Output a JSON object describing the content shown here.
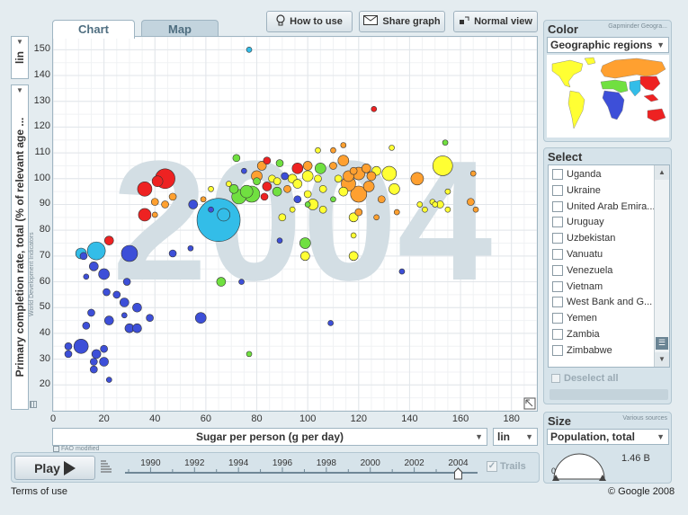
{
  "tabs": [
    {
      "label": "Chart"
    },
    {
      "label": "Map"
    }
  ],
  "toolbar": {
    "how_to_use": "How to use",
    "share_graph": "Share graph",
    "normal_view": "Normal view"
  },
  "chart": {
    "year_watermark": "2004",
    "x_axis_title": "Sugar per person (g per day)",
    "y_axis_title": "Primary completion rate, total (% of relevant age ...",
    "x_scale": "lin",
    "y_scale": "lin",
    "y_source": "World Development Indicators",
    "x_source": "FAO modified"
  },
  "chart_data": {
    "type": "scatter",
    "xlabel": "Sugar per person (g per day)",
    "ylabel": "Primary completion rate, total (% of relevant age ...",
    "xlim": [
      0,
      190
    ],
    "ylim": [
      10,
      155
    ],
    "x_ticks": [
      0,
      20,
      40,
      60,
      80,
      100,
      120,
      140,
      160,
      180
    ],
    "y_ticks": [
      20,
      30,
      40,
      50,
      60,
      70,
      80,
      90,
      100,
      110,
      120,
      130,
      140,
      150
    ],
    "grid": true,
    "colors": {
      "blue": "#3d4fd8",
      "sky": "#33bde8",
      "green": "#70e040",
      "yellow": "#ffff33",
      "orange": "#ffa030",
      "red": "#ee2222"
    },
    "points": [
      [
        77,
        150,
        "sky",
        3
      ],
      [
        126,
        127,
        "red",
        3
      ],
      [
        154,
        114,
        "green",
        3
      ],
      [
        133,
        112,
        "yellow",
        3
      ],
      [
        104,
        111,
        "yellow",
        3
      ],
      [
        110,
        111,
        "orange",
        3
      ],
      [
        114,
        113,
        "orange",
        3
      ],
      [
        72,
        108,
        "green",
        4
      ],
      [
        82,
        105,
        "orange",
        5
      ],
      [
        84,
        107,
        "red",
        4
      ],
      [
        89,
        106,
        "green",
        4
      ],
      [
        96,
        104,
        "red",
        6
      ],
      [
        100,
        105,
        "orange",
        5
      ],
      [
        105,
        104,
        "green",
        6
      ],
      [
        110,
        105,
        "orange",
        4
      ],
      [
        114,
        107,
        "orange",
        6
      ],
      [
        118,
        103,
        "orange",
        4
      ],
      [
        123,
        104,
        "orange",
        5
      ],
      [
        127,
        103,
        "yellow",
        5
      ],
      [
        132,
        102,
        "yellow",
        8
      ],
      [
        153,
        105,
        "yellow",
        11
      ],
      [
        165,
        102,
        "orange",
        3
      ],
      [
        75,
        103,
        "blue",
        3
      ],
      [
        91,
        101,
        "blue",
        4
      ],
      [
        94,
        100,
        "yellow",
        5
      ],
      [
        100,
        101,
        "yellow",
        6
      ],
      [
        104,
        100,
        "yellow",
        4
      ],
      [
        112,
        100,
        "yellow",
        4
      ],
      [
        116,
        101,
        "orange",
        6
      ],
      [
        120,
        102,
        "orange",
        7
      ],
      [
        125,
        101,
        "orange",
        5
      ],
      [
        143,
        100,
        "orange",
        7
      ],
      [
        69,
        98,
        "yellow",
        3
      ],
      [
        80,
        101,
        "orange",
        6
      ],
      [
        86,
        100,
        "yellow",
        4
      ],
      [
        44,
        100,
        "red",
        11
      ],
      [
        36,
        96,
        "red",
        8
      ],
      [
        41,
        99,
        "red",
        6
      ],
      [
        47,
        93,
        "orange",
        4
      ],
      [
        40,
        91,
        "orange",
        4
      ],
      [
        44,
        90,
        "orange",
        4
      ],
      [
        71,
        96,
        "green",
        5
      ],
      [
        76,
        95,
        "green",
        7
      ],
      [
        80,
        99,
        "green",
        4
      ],
      [
        84,
        97,
        "red",
        5
      ],
      [
        88,
        99,
        "yellow",
        4
      ],
      [
        92,
        96,
        "orange",
        4
      ],
      [
        96,
        98,
        "yellow",
        5
      ],
      [
        100,
        94,
        "yellow",
        4
      ],
      [
        106,
        96,
        "yellow",
        4
      ],
      [
        110,
        92,
        "green",
        3
      ],
      [
        114,
        95,
        "yellow",
        5
      ],
      [
        116,
        98,
        "orange",
        8
      ],
      [
        120,
        94,
        "orange",
        9
      ],
      [
        124,
        97,
        "orange",
        6
      ],
      [
        129,
        92,
        "orange",
        4
      ],
      [
        134,
        96,
        "yellow",
        6
      ],
      [
        144,
        90,
        "yellow",
        3
      ],
      [
        146,
        88,
        "yellow",
        3
      ],
      [
        149,
        91,
        "yellow",
        3
      ],
      [
        155,
        88,
        "yellow",
        3
      ],
      [
        155,
        95,
        "yellow",
        3
      ],
      [
        164,
        91,
        "orange",
        4
      ],
      [
        166,
        88,
        "orange",
        3
      ],
      [
        59,
        92,
        "orange",
        3
      ],
      [
        62,
        96,
        "yellow",
        3
      ],
      [
        55,
        90,
        "blue",
        5
      ],
      [
        62,
        88,
        "blue",
        3
      ],
      [
        67,
        86,
        "sky",
        7
      ],
      [
        65,
        84,
        "sky",
        24
      ],
      [
        73,
        93,
        "green",
        8
      ],
      [
        78,
        94,
        "green",
        9
      ],
      [
        83,
        93,
        "red",
        4
      ],
      [
        88,
        95,
        "green",
        5
      ],
      [
        96,
        92,
        "blue",
        4
      ],
      [
        102,
        90,
        "yellow",
        6
      ],
      [
        106,
        88,
        "yellow",
        4
      ],
      [
        90,
        85,
        "yellow",
        4
      ],
      [
        118,
        85,
        "yellow",
        5
      ],
      [
        120,
        87,
        "orange",
        4
      ],
      [
        127,
        85,
        "orange",
        3
      ],
      [
        135,
        87,
        "orange",
        3
      ],
      [
        36,
        86,
        "red",
        7
      ],
      [
        40,
        86,
        "orange",
        3
      ],
      [
        150,
        90,
        "yellow",
        3
      ],
      [
        100,
        90,
        "green",
        3
      ],
      [
        94,
        88,
        "yellow",
        3
      ],
      [
        118,
        78,
        "yellow",
        3
      ],
      [
        152,
        90,
        "yellow",
        4
      ],
      [
        17,
        72,
        "sky",
        10
      ],
      [
        11,
        71,
        "sky",
        6
      ],
      [
        12,
        70,
        "blue",
        4
      ],
      [
        22,
        76,
        "red",
        5
      ],
      [
        30,
        71,
        "blue",
        9
      ],
      [
        47,
        71,
        "blue",
        4
      ],
      [
        54,
        73,
        "blue",
        3
      ],
      [
        89,
        76,
        "blue",
        3
      ],
      [
        99,
        75,
        "green",
        6
      ],
      [
        99,
        70,
        "yellow",
        5
      ],
      [
        118,
        70,
        "yellow",
        5
      ],
      [
        137,
        64,
        "blue",
        3
      ],
      [
        16,
        66,
        "blue",
        5
      ],
      [
        20,
        63,
        "blue",
        6
      ],
      [
        13,
        62,
        "blue",
        3
      ],
      [
        29,
        60,
        "blue",
        4
      ],
      [
        21,
        56,
        "blue",
        4
      ],
      [
        25,
        55,
        "blue",
        4
      ],
      [
        28,
        52,
        "blue",
        5
      ],
      [
        66,
        60,
        "green",
        5
      ],
      [
        74,
        60,
        "blue",
        3
      ],
      [
        15,
        48,
        "blue",
        4
      ],
      [
        33,
        50,
        "blue",
        5
      ],
      [
        28,
        47,
        "blue",
        3
      ],
      [
        22,
        45,
        "blue",
        5
      ],
      [
        13,
        43,
        "blue",
        4
      ],
      [
        38,
        46,
        "blue",
        4
      ],
      [
        58,
        46,
        "blue",
        6
      ],
      [
        30,
        42,
        "blue",
        5
      ],
      [
        33,
        42,
        "blue",
        5
      ],
      [
        109,
        44,
        "blue",
        3
      ],
      [
        6,
        35,
        "blue",
        4
      ],
      [
        11,
        35,
        "blue",
        8
      ],
      [
        20,
        34,
        "blue",
        4
      ],
      [
        6,
        32,
        "blue",
        4
      ],
      [
        17,
        32,
        "blue",
        5
      ],
      [
        20,
        29,
        "blue",
        5
      ],
      [
        16,
        29,
        "blue",
        4
      ],
      [
        16,
        26,
        "blue",
        4
      ],
      [
        22,
        22,
        "blue",
        3
      ],
      [
        77,
        32,
        "green",
        3
      ]
    ]
  },
  "playbar": {
    "play_label": "Play",
    "years": [
      "1990",
      "1992",
      "1994",
      "1996",
      "1998",
      "2000",
      "2002",
      "2004"
    ],
    "trails_label": "Trails"
  },
  "color_panel": {
    "title": "Color",
    "source": "Gapminder Geogra...",
    "selected": "Geographic regions"
  },
  "select_panel": {
    "title": "Select",
    "items": [
      "Uganda",
      "Ukraine",
      "United Arab Emira...",
      "Uruguay",
      "Uzbekistan",
      "Vanuatu",
      "Venezuela",
      "Vietnam",
      "West Bank and G...",
      "Yemen",
      "Zambia",
      "Zimbabwe"
    ],
    "deselect_label": "Deselect all"
  },
  "size_panel": {
    "title": "Size",
    "source": "Various sources",
    "selected": "Population, total",
    "gauge_min": "0",
    "gauge_value": "1.46 B"
  },
  "footer": {
    "terms": "Terms of use",
    "copyright": "© Google 2008"
  }
}
